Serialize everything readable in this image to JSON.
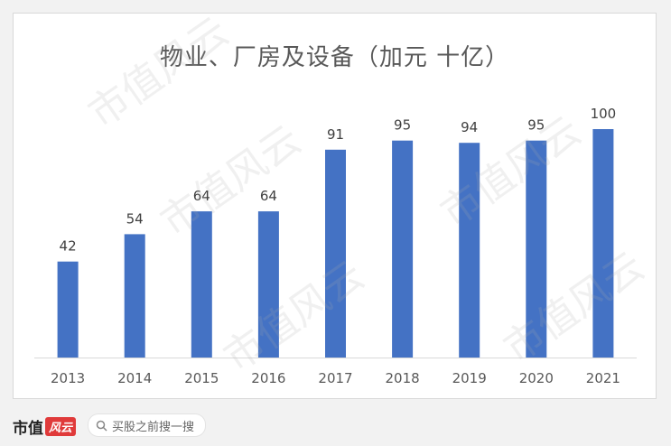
{
  "chart_data": {
    "type": "bar",
    "title": "物业、厂房及设备（加元 十亿）",
    "categories": [
      "2013",
      "2014",
      "2015",
      "2016",
      "2017",
      "2018",
      "2019",
      "2020",
      "2021"
    ],
    "values": [
      42,
      54,
      64,
      64,
      91,
      95,
      94,
      95,
      100
    ],
    "data_labels": [
      "42",
      "54",
      "64",
      "64",
      "91",
      "95",
      "94",
      "95",
      "100"
    ],
    "xlabel": "",
    "ylabel": "",
    "ylim": [
      0,
      110
    ],
    "grid": false,
    "legend": "none",
    "bar_color": "#4472c4"
  },
  "watermark": {
    "text": "市值风云"
  },
  "footer": {
    "brand_text": "市值",
    "brand_badge": "风云",
    "search_icon": "search-icon",
    "search_text": "买股之前搜一搜"
  }
}
